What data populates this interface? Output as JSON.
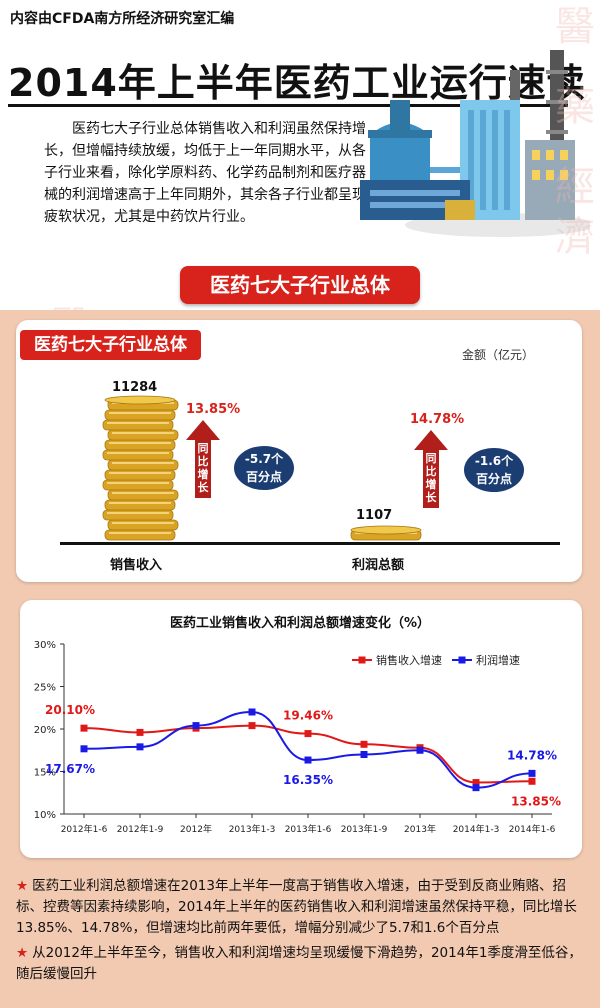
{
  "header": {
    "source": "内容由CFDA南方所经济研究室汇编",
    "title": "2014年上半年医药工业运行速读",
    "intro": "医药七大子行业总体销售收入和利润虽然保持增长，但增幅持续放缓，均低于上一年同期水平，从各子行业来看，除化学原料药、化学药品制剂和医疗器械的利润增速高于上年同期外，其余各子行业都呈现疲软状况，尤其是中药饮片行业。"
  },
  "watermark_chars": [
    "醫",
    "藥",
    "經",
    "濟",
    "報"
  ],
  "section_button": "医药七大子行业总体",
  "colors": {
    "accent_red": "#d7231c",
    "navy": "#1b3d72",
    "blue_series": "#1a1ae6",
    "red_series": "#e01818",
    "gold": "#d9a323",
    "peach": "#f2c9b1"
  },
  "chart_data": [
    {
      "type": "bar",
      "tag": "医药七大子行业总体",
      "unit": "金额（亿元）",
      "categories": [
        "销售收入",
        "利润总额"
      ],
      "values": [
        11284,
        1107
      ],
      "value_labels": [
        "11284",
        "1107"
      ],
      "growth_labels": [
        "13.85%",
        "14.78%"
      ],
      "arrow_text": "同比增长",
      "change_labels": [
        [
          "-5.7个",
          "百分点"
        ],
        [
          "-1.6个",
          "百分点"
        ]
      ]
    },
    {
      "type": "line",
      "title": "医药工业销售收入和利润总额增速变化（%）",
      "categories": [
        "2012年1-6",
        "2012年1-9",
        "2012年",
        "2013年1-3",
        "2013年1-6",
        "2013年1-9",
        "2013年",
        "2014年1-3",
        "2014年1-6"
      ],
      "ylim": [
        10,
        30
      ],
      "yticks": [
        "10%",
        "15%",
        "20%",
        "25%",
        "30%"
      ],
      "grid": false,
      "legend_position": "top-right",
      "series": [
        {
          "name": "销售收入增速",
          "values": [
            20.1,
            19.6,
            20.1,
            20.4,
            19.46,
            18.2,
            17.8,
            13.7,
            13.85
          ],
          "color": "#e01818"
        },
        {
          "name": "利润增速",
          "values": [
            17.67,
            17.9,
            20.4,
            22.0,
            16.35,
            17.0,
            17.5,
            13.1,
            14.78
          ],
          "color": "#1a1ae6"
        }
      ],
      "annotations": [
        {
          "series": 0,
          "index": 0,
          "text": "20.10%"
        },
        {
          "series": 1,
          "index": 0,
          "text": "17.67%"
        },
        {
          "series": 0,
          "index": 4,
          "text": "19.46%"
        },
        {
          "series": 1,
          "index": 4,
          "text": "16.35%"
        },
        {
          "series": 1,
          "index": 8,
          "text": "14.78%"
        },
        {
          "series": 0,
          "index": 8,
          "text": "13.85%"
        }
      ]
    }
  ],
  "notes": [
    "医药工业利润总额增速在2013年上半年一度高于销售收入增速，由于受到反商业贿赂、招标、控费等因素持续影响，2014年上半年的医药销售收入和利润增速虽然保持平稳，同比增长13.85%、14.78%，但增速均比前两年要低，增幅分别减少了5.7和1.6个百分点",
    "从2012年上半年至今，销售收入和利润增速均呈现缓慢下滑趋势，2014年1季度滑至低谷，随后缓慢回升"
  ],
  "star_icon": "star-icon"
}
